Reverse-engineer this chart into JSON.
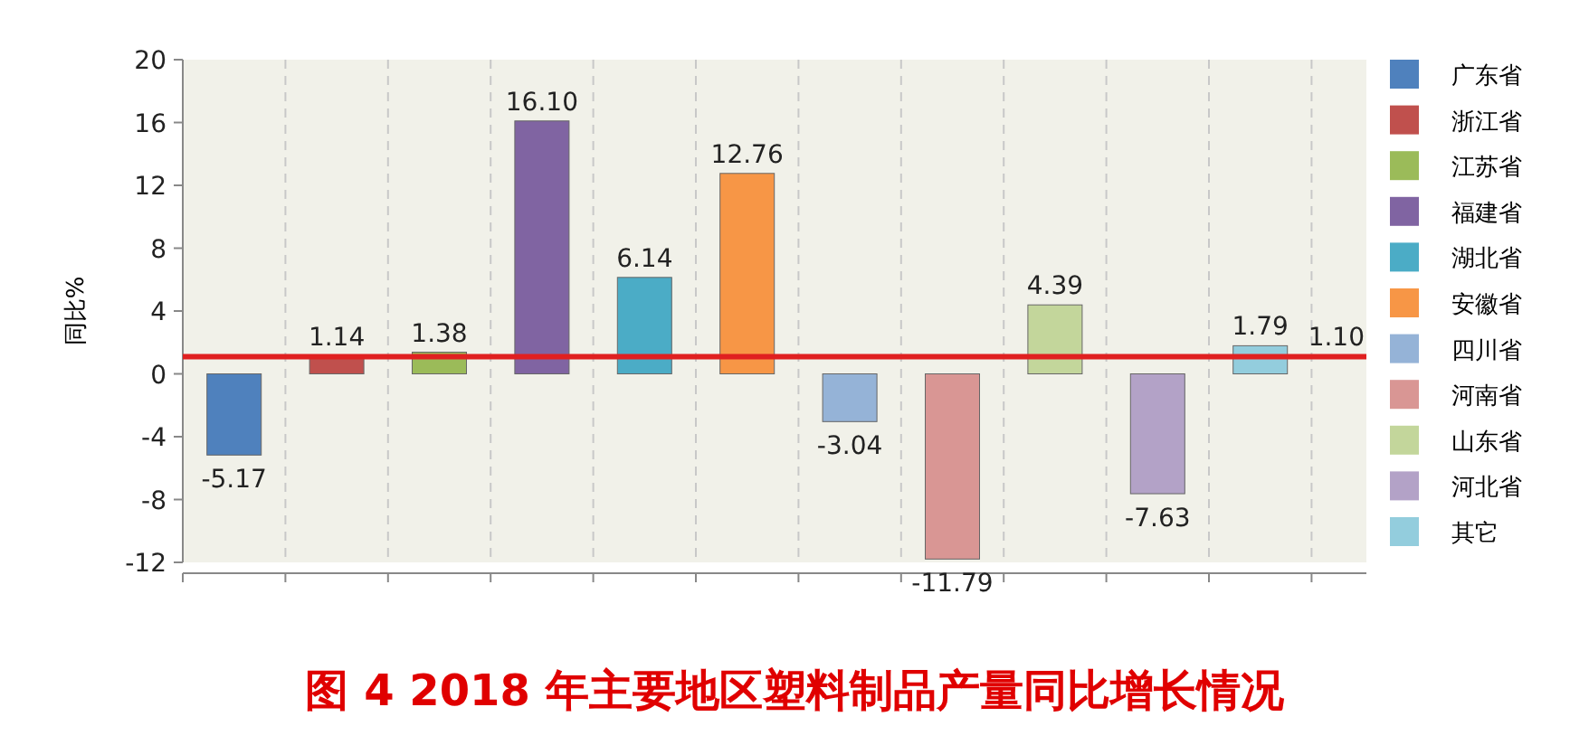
{
  "chart_data": {
    "type": "bar",
    "title": "图 4 2018 年主要地区塑料制品产量同比增长情况",
    "ylabel": "同比%",
    "categories": [
      null,
      null,
      null,
      null,
      null,
      null,
      null,
      null,
      null,
      null,
      null
    ],
    "series": [
      {
        "name": "广东省",
        "color": "#4f81bd",
        "values": [
          -5.17,
          null,
          null,
          null,
          null,
          null,
          null,
          null,
          null,
          null,
          null
        ],
        "value_labels": [
          "-5.17",
          null,
          null,
          null,
          null,
          null,
          null,
          null,
          null,
          null,
          null
        ]
      },
      {
        "name": "浙江省",
        "color": "#c0504d",
        "values": [
          null,
          1.14,
          null,
          null,
          null,
          null,
          null,
          null,
          null,
          null,
          null
        ],
        "value_labels": [
          null,
          "1.14",
          null,
          null,
          null,
          null,
          null,
          null,
          null,
          null,
          null
        ]
      },
      {
        "name": "江苏省",
        "color": "#9bbb59",
        "values": [
          null,
          null,
          1.38,
          null,
          null,
          null,
          null,
          null,
          null,
          null,
          null
        ],
        "value_labels": [
          null,
          null,
          "1.38",
          null,
          null,
          null,
          null,
          null,
          null,
          null,
          null
        ]
      },
      {
        "name": "福建省",
        "color": "#8064a2",
        "values": [
          null,
          null,
          null,
          16.1,
          null,
          null,
          null,
          null,
          null,
          null,
          null
        ],
        "value_labels": [
          null,
          null,
          null,
          "16.10",
          null,
          null,
          null,
          null,
          null,
          null,
          null
        ]
      },
      {
        "name": "湖北省",
        "color": "#4bacc6",
        "values": [
          null,
          null,
          null,
          null,
          6.14,
          null,
          null,
          null,
          null,
          null,
          null
        ],
        "value_labels": [
          null,
          null,
          null,
          null,
          "6.14",
          null,
          null,
          null,
          null,
          null,
          null
        ]
      },
      {
        "name": "安徽省",
        "color": "#f79646",
        "values": [
          null,
          null,
          null,
          null,
          null,
          12.76,
          null,
          null,
          null,
          null,
          null
        ],
        "value_labels": [
          null,
          null,
          null,
          null,
          null,
          "12.76",
          null,
          null,
          null,
          null,
          null
        ]
      },
      {
        "name": "四川省",
        "color": "#95b3d7",
        "values": [
          null,
          null,
          null,
          null,
          null,
          null,
          -3.04,
          null,
          null,
          null,
          null
        ],
        "value_labels": [
          null,
          null,
          null,
          null,
          null,
          null,
          "-3.04",
          null,
          null,
          null,
          null
        ]
      },
      {
        "name": "河南省",
        "color": "#d99694",
        "values": [
          null,
          null,
          null,
          null,
          null,
          null,
          null,
          -11.79,
          null,
          null,
          null
        ],
        "value_labels": [
          null,
          null,
          null,
          null,
          null,
          null,
          null,
          "-11.79",
          null,
          null,
          null
        ]
      },
      {
        "name": "山东省",
        "color": "#c3d69b",
        "values": [
          null,
          null,
          null,
          null,
          null,
          null,
          null,
          null,
          4.39,
          null,
          null
        ],
        "value_labels": [
          null,
          null,
          null,
          null,
          null,
          null,
          null,
          null,
          "4.39",
          null,
          null
        ]
      },
      {
        "name": "河北省",
        "color": "#b3a2c7",
        "values": [
          null,
          null,
          null,
          null,
          null,
          null,
          null,
          null,
          null,
          -7.63,
          null
        ],
        "value_labels": [
          null,
          null,
          null,
          null,
          null,
          null,
          null,
          null,
          null,
          "-7.63",
          null
        ]
      },
      {
        "name": "其它",
        "color": "#93cddd",
        "values": [
          null,
          null,
          null,
          null,
          null,
          null,
          null,
          null,
          null,
          null,
          1.79
        ],
        "value_labels": [
          null,
          null,
          null,
          null,
          null,
          null,
          null,
          null,
          null,
          null,
          "1.79"
        ]
      }
    ],
    "ylim": [
      -12,
      20
    ],
    "yticks": [
      -12,
      -8,
      -4,
      0,
      4,
      8,
      12,
      16,
      20
    ],
    "ref_lines": [
      {
        "axis": "y",
        "value": 1.1,
        "label": "1.10",
        "color": "#e02020"
      }
    ],
    "grid": "x",
    "legend": "right",
    "tick_labels": "y"
  }
}
